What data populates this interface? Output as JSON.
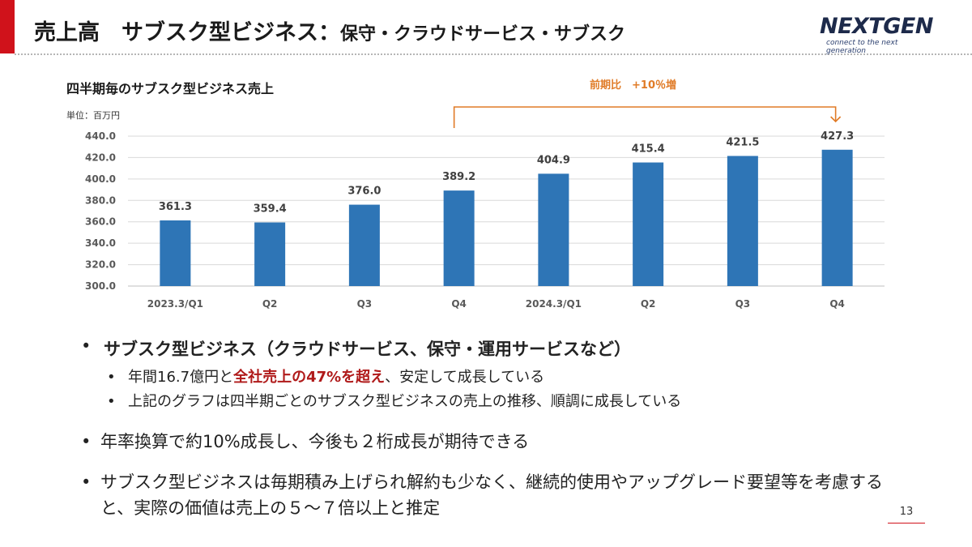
{
  "header": {
    "title_main": "売上高　サブスク型ビジネス：",
    "title_sub": "保守・クラウドサービス・サブスク"
  },
  "logo": {
    "name": "NEXTGEN",
    "tagline": "connect to the next generation"
  },
  "chart_data": {
    "type": "bar",
    "title": "四半期毎のサブスク型ビジネス売上",
    "unit_label": "単位：百万円",
    "categories": [
      "2023.3/Q1",
      "Q2",
      "Q3",
      "Q4",
      "2024.3/Q1",
      "Q2",
      "Q3",
      "Q4"
    ],
    "values": [
      361.3,
      359.4,
      376.0,
      389.2,
      404.9,
      415.4,
      421.5,
      427.3
    ],
    "value_labels": [
      "361.3",
      "359.4",
      "376.0",
      "389.2",
      "404.9",
      "415.4",
      "421.5",
      "427.3"
    ],
    "ylim": [
      300,
      440
    ],
    "yticks": [
      "300.0",
      "320.0",
      "340.0",
      "360.0",
      "380.0",
      "400.0",
      "420.0",
      "440.0"
    ],
    "grid": true,
    "bar_color": "#2e75b6",
    "annotation": {
      "text": "前期比　+10％増",
      "from_index": 3,
      "to_index": 7,
      "color": "#e07b27"
    }
  },
  "bullets": {
    "main": "サブスク型ビジネス（クラウドサービス、保守・運用サービスなど）",
    "sub1_before": "年間16.7億円と",
    "sub1_highlight": "全社売上の47%を超え",
    "sub1_after": "、安定して成長している",
    "sub2": "上記のグラフは四半期ごとのサブスク型ビジネスの売上の推移、順調に成長している",
    "point2": "年率換算で約10%成長し、今後も２桁成長が期待できる",
    "point3": "サブスク型ビジネスは毎期積み上げられ解約も少なく、継続的使用やアップグレード要望等を考慮すると、実際の価値は売上の５～７倍以上と推定"
  },
  "page_number": "13"
}
